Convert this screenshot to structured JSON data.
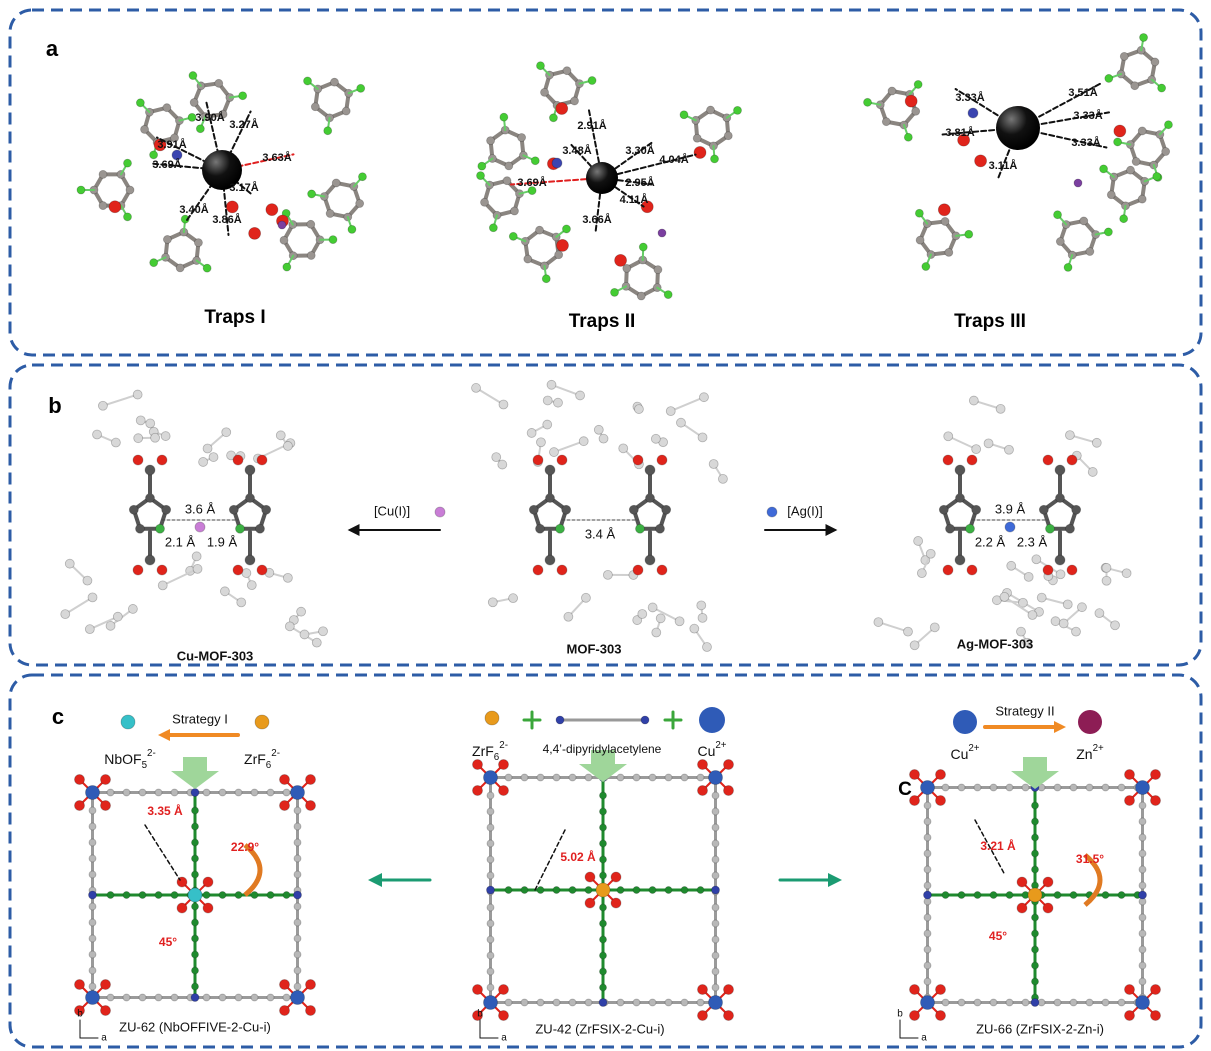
{
  "panel_a": {
    "label": "a",
    "traps": [
      {
        "title": "Traps I",
        "distances": [
          "3.91Å",
          "3.90Å",
          "3.27Å",
          "3.69Å",
          "3.63Å",
          "3.40Å",
          "3.17Å",
          "3.86Å"
        ]
      },
      {
        "title": "Traps II",
        "distances": [
          "2.91Å",
          "3.48Å",
          "3.30Å",
          "4.04Å",
          "3.69Å",
          "2.95Å",
          "4.11Å",
          "3.66Å"
        ]
      },
      {
        "title": "Traps III",
        "distances": [
          "3.33Å",
          "3.51Å",
          "3.33Å",
          "3.81Å",
          "3.33Å",
          "3.11Å"
        ]
      }
    ]
  },
  "panel_b": {
    "label": "b",
    "structures": [
      {
        "title": "Cu-MOF-303",
        "distances": [
          "3.6 Å",
          "2.1 Å",
          "1.9 Å"
        ]
      },
      {
        "title": "MOF-303",
        "distances": [
          "3.4 Å"
        ]
      },
      {
        "title": "Ag-MOF-303",
        "distances": [
          "3.9 Å",
          "2.2 Å",
          "2.3 Å"
        ]
      }
    ],
    "reagents": [
      "[Cu(I)]",
      "[Ag(I)]"
    ]
  },
  "panel_c": {
    "label": "c",
    "left": {
      "strategy": "Strategy I",
      "from": {
        "base": "ZrF",
        "sub": "6",
        "sup": "2-"
      },
      "to": {
        "base": "NbOF",
        "sub": "5",
        "sup": "2-"
      },
      "distance": "3.35 Å",
      "angles": [
        "22.9°",
        "45°"
      ],
      "title": "ZU-62 (NbOFFIVE-2-Cu-i)"
    },
    "center": {
      "components": [
        {
          "base": "ZrF",
          "sub": "6",
          "sup": "2-"
        },
        {
          "base": "4,4’-dipyridylacetylene"
        },
        {
          "base": "Cu",
          "sup": "2+"
        }
      ],
      "distance": "5.02 Å",
      "title": "ZU-42 (ZrFSIX-2-Cu-i)"
    },
    "right": {
      "strategy": "Strategy II",
      "from": {
        "base": "Cu",
        "sup": "2+"
      },
      "to": {
        "base": "Zn",
        "sup": "2+"
      },
      "marker": "C",
      "distance": "3.21 Å",
      "angles": [
        "31.5°",
        "45°"
      ],
      "title": "ZU-66 (ZrFSIX-2-Zn-i)"
    },
    "axes": [
      "b",
      "a"
    ]
  }
}
